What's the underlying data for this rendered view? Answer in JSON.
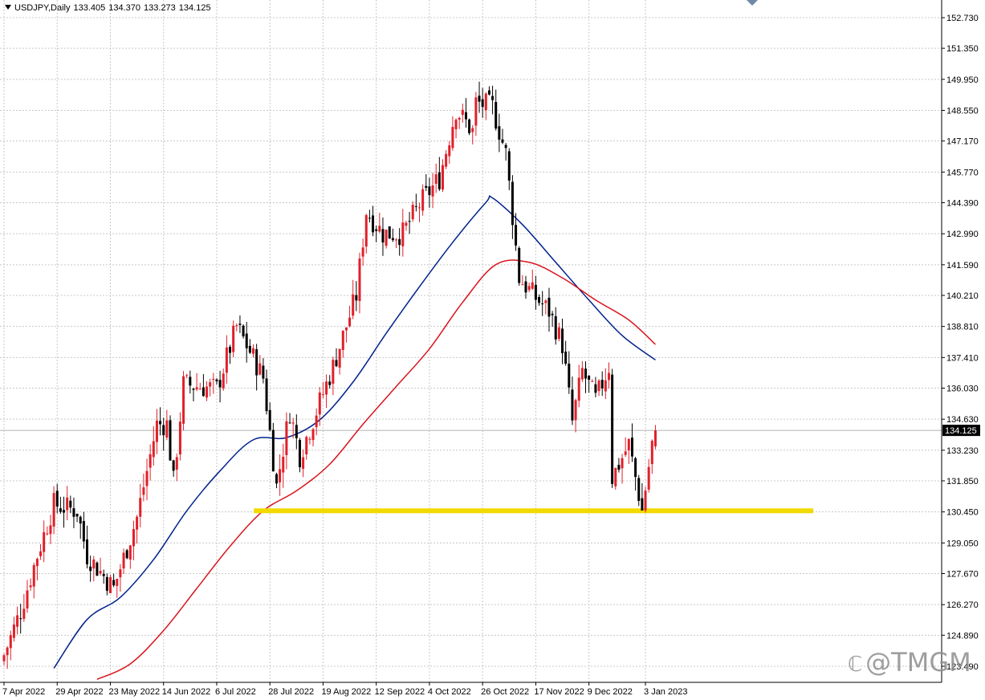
{
  "header": {
    "symbol": "USDJPY,Daily",
    "open": "133.405",
    "high": "134.370",
    "low": "133.273",
    "close": "134.125"
  },
  "watermark": {
    "text": "@TMGM",
    "logo_icon": "tmgm-logo-icon"
  },
  "colors": {
    "bull": "#e0202a",
    "bear": "#000000",
    "ma_fast": "#00228c",
    "ma_slow": "#d8151c",
    "support": "#f2d900",
    "grid": "#c8c8c8",
    "price_label_bg": "#000000"
  },
  "chart_data": {
    "type": "candlestick",
    "title": "USDJPY,Daily",
    "y_ticks": [
      "152.730",
      "151.350",
      "149.950",
      "148.550",
      "147.170",
      "145.770",
      "144.390",
      "142.990",
      "141.590",
      "140.210",
      "138.810",
      "137.410",
      "136.030",
      "134.630",
      "133.230",
      "131.850",
      "130.450",
      "129.050",
      "127.670",
      "126.270",
      "124.890",
      "123.490"
    ],
    "x_ticks": [
      "7 Apr 2022",
      "29 Apr 2022",
      "23 May 2022",
      "14 Jun 2022",
      "6 Jul 2022",
      "28 Jul 2022",
      "19 Aug 2022",
      "12 Sep 2022",
      "4 Oct 2022",
      "26 Oct 2022",
      "17 Nov 2022",
      "9 Dec 2022",
      "3 Jan 2023"
    ],
    "ylim": [
      122.95,
      153.25
    ],
    "last_price": "134.125",
    "support_level": 130.5,
    "support_range": [
      "28 Jul 2022",
      "~25 Jan 2023"
    ],
    "grid": true,
    "ohlc_anchors": [
      {
        "date": "7 Apr 2022",
        "close": 124.0
      },
      {
        "date": "14 Apr 2022",
        "close": 126.0
      },
      {
        "date": "21 Apr 2022",
        "close": 128.5
      },
      {
        "date": "28 Apr 2022",
        "close": 130.8
      },
      {
        "date": "9 May 2022",
        "close": 130.5
      },
      {
        "date": "12 May 2022",
        "close": 128.5
      },
      {
        "date": "24 May 2022",
        "close": 127.0
      },
      {
        "date": "2 Jun 2022",
        "close": 130.2
      },
      {
        "date": "10 Jun 2022",
        "close": 134.4
      },
      {
        "date": "15 Jun 2022",
        "close": 134.4
      },
      {
        "date": "17 Jun 2022",
        "close": 131.8
      },
      {
        "date": "22 Jun 2022",
        "close": 136.2
      },
      {
        "date": "6 Jul 2022",
        "close": 136.0
      },
      {
        "date": "14 Jul 2022",
        "close": 138.8
      },
      {
        "date": "21 Jul 2022",
        "close": 137.4
      },
      {
        "date": "26 Jul 2022",
        "close": 136.5
      },
      {
        "date": "1 Aug 2022",
        "close": 131.6
      },
      {
        "date": "5 Aug 2022",
        "close": 135.0
      },
      {
        "date": "10 Aug 2022",
        "close": 133.0
      },
      {
        "date": "17 Aug 2022",
        "close": 135.0
      },
      {
        "date": "24 Aug 2022",
        "close": 137.0
      },
      {
        "date": "2 Sep 2022",
        "close": 140.2
      },
      {
        "date": "7 Sep 2022",
        "close": 144.0
      },
      {
        "date": "14 Sep 2022",
        "close": 143.0
      },
      {
        "date": "22 Sep 2022",
        "close": 143.0
      },
      {
        "date": "29 Sep 2022",
        "close": 144.3
      },
      {
        "date": "7 Oct 2022",
        "close": 145.5
      },
      {
        "date": "14 Oct 2022",
        "close": 148.6
      },
      {
        "date": "21 Oct 2022",
        "close": 147.6
      },
      {
        "date": "24 Oct 2022",
        "close": 148.9
      },
      {
        "date": "31 Oct 2022",
        "close": 148.7
      },
      {
        "date": "4 Nov 2022",
        "close": 146.6
      },
      {
        "date": "10 Nov 2022",
        "close": 141.0
      },
      {
        "date": "17 Nov 2022",
        "close": 140.1
      },
      {
        "date": "23 Nov 2022",
        "close": 139.5
      },
      {
        "date": "29 Nov 2022",
        "close": 138.0
      },
      {
        "date": "2 Dec 2022",
        "close": 134.5
      },
      {
        "date": "7 Dec 2022",
        "close": 136.8
      },
      {
        "date": "13 Dec 2022",
        "close": 135.5
      },
      {
        "date": "19 Dec 2022",
        "close": 137.0
      },
      {
        "date": "20 Dec 2022",
        "close": 132.0
      },
      {
        "date": "27 Dec 2022",
        "close": 133.5
      },
      {
        "date": "2 Jan 2023",
        "close": 130.5
      },
      {
        "date": "5 Jan 2023",
        "close": 133.5
      },
      {
        "date": "6 Jan 2023",
        "close": 134.125
      }
    ],
    "series": [
      {
        "kind": "moving-average-fast",
        "points": [
          {
            "date": "28 Apr 2022",
            "value": 123.4
          },
          {
            "date": "12 May 2022",
            "value": 125.6
          },
          {
            "date": "26 May 2022",
            "value": 126.6
          },
          {
            "date": "9 Jun 2022",
            "value": 128.3
          },
          {
            "date": "23 Jun 2022",
            "value": 130.5
          },
          {
            "date": "7 Jul 2022",
            "value": 132.3
          },
          {
            "date": "21 Jul 2022",
            "value": 133.7
          },
          {
            "date": "4 Aug 2022",
            "value": 133.8
          },
          {
            "date": "18 Aug 2022",
            "value": 134.6
          },
          {
            "date": "1 Sep 2022",
            "value": 136.3
          },
          {
            "date": "15 Sep 2022",
            "value": 138.5
          },
          {
            "date": "29 Sep 2022",
            "value": 140.6
          },
          {
            "date": "13 Oct 2022",
            "value": 142.6
          },
          {
            "date": "27 Oct 2022",
            "value": 144.4
          },
          {
            "date": "31 Oct 2022",
            "value": 144.6
          },
          {
            "date": "11 Nov 2022",
            "value": 143.4
          },
          {
            "date": "25 Nov 2022",
            "value": 141.7
          },
          {
            "date": "9 Dec 2022",
            "value": 140.0
          },
          {
            "date": "23 Dec 2022",
            "value": 138.4
          },
          {
            "date": "6 Jan 2023",
            "value": 137.3
          }
        ]
      },
      {
        "kind": "moving-average-slow",
        "points": [
          {
            "date": "17 May 2022",
            "value": 122.9
          },
          {
            "date": "31 May 2022",
            "value": 123.6
          },
          {
            "date": "14 Jun 2022",
            "value": 125.1
          },
          {
            "date": "28 Jun 2022",
            "value": 127.0
          },
          {
            "date": "12 Jul 2022",
            "value": 128.9
          },
          {
            "date": "26 Jul 2022",
            "value": 130.5
          },
          {
            "date": "9 Aug 2022",
            "value": 131.4
          },
          {
            "date": "23 Aug 2022",
            "value": 132.6
          },
          {
            "date": "6 Sep 2022",
            "value": 134.4
          },
          {
            "date": "20 Sep 2022",
            "value": 136.1
          },
          {
            "date": "4 Oct 2022",
            "value": 137.8
          },
          {
            "date": "18 Oct 2022",
            "value": 139.9
          },
          {
            "date": "1 Nov 2022",
            "value": 141.6
          },
          {
            "date": "15 Nov 2022",
            "value": 141.7
          },
          {
            "date": "29 Nov 2022",
            "value": 141.0
          },
          {
            "date": "13 Dec 2022",
            "value": 140.0
          },
          {
            "date": "27 Dec 2022",
            "value": 139.1
          },
          {
            "date": "6 Jan 2023",
            "value": 138.0
          }
        ]
      }
    ]
  }
}
